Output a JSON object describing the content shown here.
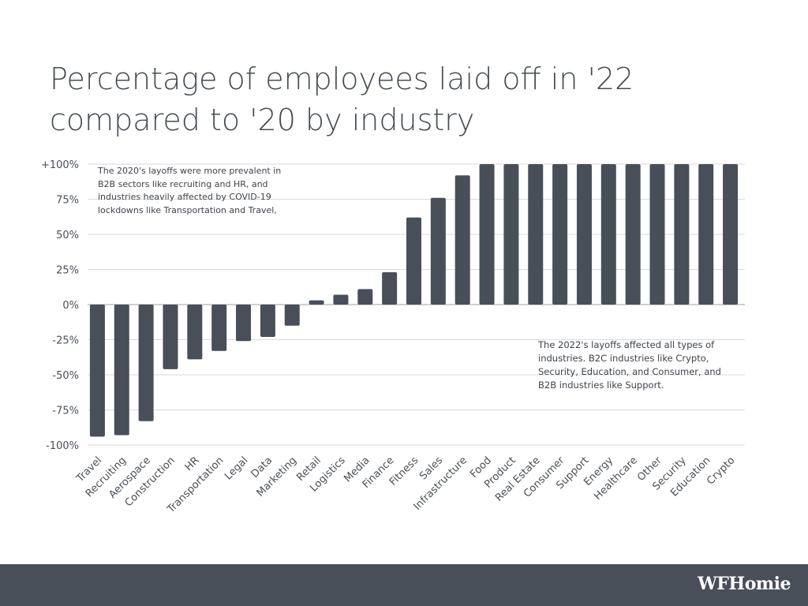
{
  "title": "Percentage of employees laid off in '22 compared to '20 by industry",
  "chart_data": {
    "type": "bar",
    "title": "Percentage of employees laid off in '22 compared to '20 by industry",
    "categories": [
      "Travel",
      "Recruiting",
      "Aerospace",
      "Construction",
      "HR",
      "Transportation",
      "Legal",
      "Data",
      "Marketing",
      "Retail",
      "Logistics",
      "Media",
      "Finance",
      "Fitness",
      "Sales",
      "Infrastructure",
      "Food",
      "Product",
      "Real Estate",
      "Consumer",
      "Support",
      "Energy",
      "Healthcare",
      "Other",
      "Security",
      "Education",
      "Crypto"
    ],
    "values": [
      -94,
      -93,
      -83,
      -46,
      -39,
      -33,
      -26,
      -23,
      -15,
      3,
      7,
      11,
      23,
      62,
      76,
      92,
      100,
      100,
      100,
      100,
      100,
      100,
      100,
      100,
      100,
      100,
      100
    ],
    "ylim": [
      -100,
      100
    ],
    "yticks": [
      100,
      75,
      50,
      25,
      0,
      -25,
      -50,
      -75,
      -100
    ],
    "ytick_labels": [
      "+100%",
      "75%",
      "50%",
      "25%",
      "0%",
      "-25%",
      "-50%",
      "-75%",
      "-100%"
    ],
    "grid": true,
    "bar_color": "#484f58",
    "annotations": [
      "The 2020's layoffs were more prevalent in B2B sectors like recruiting and HR, and industries heavily affected by COVID-19 lockdowns like Transportation and Travel,",
      "The 2022's layoffs affected all types of industries. B2C industries like Crypto, Security, Education, and Consumer, and B2B industries like Support."
    ]
  },
  "footer": {
    "logo": "WFHomie",
    "background": "#484f58"
  }
}
